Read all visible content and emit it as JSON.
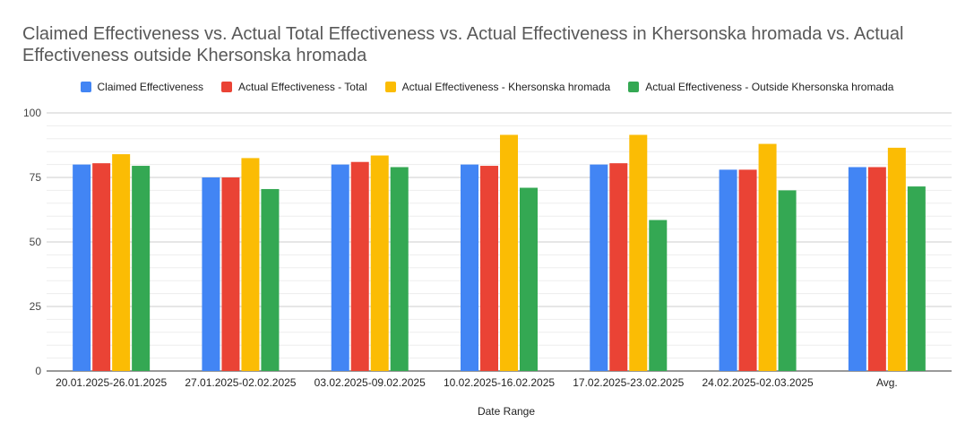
{
  "chart_data": {
    "type": "bar",
    "title": "Claimed Effectiveness vs. Actual Total Effectiveness vs. Actual Effectiveness in Khersonska hromada vs. Actual Effectiveness outside Khersonska hromada",
    "xlabel": "Date Range",
    "ylabel": "",
    "ylim": [
      0,
      100
    ],
    "yticks": [
      0,
      25,
      50,
      75,
      100
    ],
    "grid": true,
    "legend_position": "top",
    "categories": [
      "20.01.2025-26.01.2025",
      "27.01.2025-02.02.2025",
      "03.02.2025-09.02.2025",
      "10.02.2025-16.02.2025",
      "17.02.2025-23.02.2025",
      "24.02.2025-02.03.2025",
      "Avg."
    ],
    "series": [
      {
        "name": "Claimed Effectiveness",
        "color": "#4285f4",
        "values": [
          80,
          75,
          80,
          80,
          80,
          78,
          79
        ]
      },
      {
        "name": "Actual Effectiveness - Total",
        "color": "#ea4335",
        "values": [
          80.5,
          75,
          81,
          79.5,
          80.5,
          78,
          79
        ]
      },
      {
        "name": "Actual Effectiveness - Khersonska hromada",
        "color": "#fbbc04",
        "values": [
          84,
          82.5,
          83.5,
          91.5,
          91.5,
          88,
          86.5
        ]
      },
      {
        "name": "Actual Effectiveness - Outside Khersonska hromada",
        "color": "#34a853",
        "values": [
          79.5,
          70.5,
          79,
          71,
          58.5,
          70,
          71.5
        ]
      }
    ]
  }
}
